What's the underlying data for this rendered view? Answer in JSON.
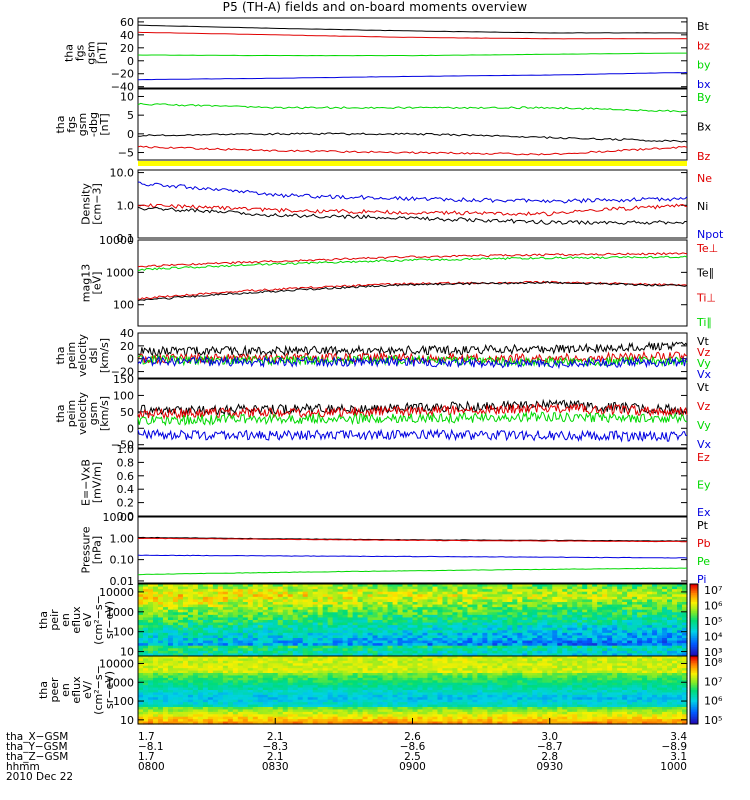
{
  "title": "P5 (TH-A) fields and on-board moments overview",
  "colors": {
    "black": "#000000",
    "red": "#e00000",
    "green": "#00d800",
    "blue": "#0000e0",
    "yellow": "#ffff00"
  },
  "panels": [
    {
      "id": "fgs-gsm",
      "ylabel": [
        "tha",
        "fgs",
        "gsm",
        "[nT]"
      ],
      "scale": "linear",
      "ylim": [
        -42,
        66
      ],
      "ticks": [
        {
          "v": 60,
          "label": "60"
        },
        {
          "v": 40,
          "label": "40"
        },
        {
          "v": 20,
          "label": "20"
        },
        {
          "v": 0,
          "label": "0"
        },
        {
          "v": -20,
          "label": "−20"
        },
        {
          "v": -40,
          "label": "−40"
        }
      ],
      "legend": [
        {
          "name": "Bt",
          "color": "#000000"
        },
        {
          "name": "bz",
          "color": "#e00000"
        },
        {
          "name": "by",
          "color": "#00d800"
        },
        {
          "name": "bx",
          "color": "#0000e0"
        }
      ]
    },
    {
      "id": "fgs-gsm-dbg",
      "ylabel": [
        "tha",
        "fgs",
        "gsm",
        "-dbg",
        "[nT]"
      ],
      "scale": "linear",
      "ylim": [
        -7,
        12
      ],
      "ticks": [
        {
          "v": 10,
          "label": "10"
        },
        {
          "v": 5,
          "label": "5"
        },
        {
          "v": 0,
          "label": "0"
        },
        {
          "v": -5,
          "label": "−5"
        }
      ],
      "legend": [
        {
          "name": "By",
          "color": "#00d800"
        },
        {
          "name": "Bx",
          "color": "#000000"
        },
        {
          "name": "Bz",
          "color": "#e00000"
        }
      ]
    },
    {
      "id": "density",
      "ylabel": [
        "Density",
        "[cm−3]"
      ],
      "scale": "log",
      "ylim": [
        0.1,
        12
      ],
      "ticks": [
        {
          "v": 10,
          "label": "10.0"
        },
        {
          "v": 1,
          "label": "1.0"
        },
        {
          "v": 0.1,
          "label": "0.1"
        }
      ],
      "legend": [
        {
          "name": "Ne",
          "color": "#e00000"
        },
        {
          "name": "Ni",
          "color": "#000000"
        },
        {
          "name": "Npot",
          "color": "#0000e0"
        }
      ]
    },
    {
      "id": "temperature",
      "ylabel": [
        "mag13",
        "[eV]"
      ],
      "scale": "log",
      "ylim": [
        22,
        10000
      ],
      "ticks": [
        {
          "v": 10000,
          "label": "10000"
        },
        {
          "v": 1000,
          "label": "1000"
        },
        {
          "v": 100,
          "label": "100"
        }
      ],
      "legend": [
        {
          "name": "Te⊥",
          "color": "#e00000"
        },
        {
          "name": "Te∥",
          "color": "#000000"
        },
        {
          "name": "Ti⊥",
          "color": "#e00000"
        },
        {
          "name": "Ti∥",
          "color": "#00d800"
        }
      ]
    },
    {
      "id": "peim-velocity-dsl",
      "ylabel": [
        "tha",
        "peim",
        "velocity",
        "dsl",
        "[km/s]"
      ],
      "scale": "linear",
      "ylim": [
        -30,
        40
      ],
      "ticks": [
        {
          "v": 40,
          "label": "40"
        },
        {
          "v": 20,
          "label": "20"
        },
        {
          "v": 0,
          "label": "0"
        },
        {
          "v": -20,
          "label": "−20"
        }
      ],
      "legend": [
        {
          "name": "Vt",
          "color": "#000000"
        },
        {
          "name": "Vz",
          "color": "#e00000"
        },
        {
          "name": "Vy",
          "color": "#00d800"
        },
        {
          "name": "Vx",
          "color": "#0000e0"
        }
      ]
    },
    {
      "id": "peim-velocity-gsm",
      "ylabel": [
        "tha",
        "peim",
        "velocity",
        "gsm",
        "[km/s]"
      ],
      "scale": "linear",
      "ylim": [
        -60,
        150
      ],
      "ticks": [
        {
          "v": 150,
          "label": "150"
        },
        {
          "v": 100,
          "label": "100"
        },
        {
          "v": 50,
          "label": "50"
        },
        {
          "v": 0,
          "label": "0"
        },
        {
          "v": -50,
          "label": "−50"
        }
      ],
      "legend": [
        {
          "name": "Vt",
          "color": "#000000"
        },
        {
          "name": "Vz",
          "color": "#e00000"
        },
        {
          "name": "Vy",
          "color": "#00d800"
        },
        {
          "name": "Vx",
          "color": "#0000e0"
        }
      ]
    },
    {
      "id": "e-vxb",
      "ylabel": [
        "E=−VxB",
        "[mV/m]"
      ],
      "scale": "linear",
      "ylim": [
        0,
        1
      ],
      "ticks": [
        {
          "v": 1.0,
          "label": "1.0"
        },
        {
          "v": 0.8,
          "label": "0.8"
        },
        {
          "v": 0.6,
          "label": "0.6"
        },
        {
          "v": 0.4,
          "label": "0.4"
        },
        {
          "v": 0.2,
          "label": "0.2"
        },
        {
          "v": 0.0,
          "label": "0.0"
        }
      ],
      "legend": [
        {
          "name": "Ez",
          "color": "#e00000"
        },
        {
          "name": "Ey",
          "color": "#00d800"
        },
        {
          "name": "Ex",
          "color": "#0000e0"
        }
      ]
    },
    {
      "id": "pressure",
      "ylabel": [
        "Pressure",
        "[nPa]"
      ],
      "scale": "log",
      "ylim": [
        0.008,
        10
      ],
      "ticks": [
        {
          "v": 10,
          "label": "10.00"
        },
        {
          "v": 1,
          "label": "1.00"
        },
        {
          "v": 0.1,
          "label": "0.10"
        },
        {
          "v": 0.01,
          "label": "0.01"
        }
      ],
      "legend": [
        {
          "name": "Pt",
          "color": "#000000"
        },
        {
          "name": "Pb",
          "color": "#e00000"
        },
        {
          "name": "Pe",
          "color": "#00d800"
        },
        {
          "name": "Pi",
          "color": "#0000e0"
        }
      ]
    },
    {
      "id": "peir-en-eflux",
      "ylabel": [
        "tha",
        "peir",
        "en",
        "eflux",
        "eV",
        "(cm²−s−",
        "sr−eV)"
      ],
      "scale": "log",
      "ylim": [
        6,
        25000
      ],
      "ticks": [
        {
          "v": 10000,
          "label": "10000"
        },
        {
          "v": 1000,
          "label": "1000"
        },
        {
          "v": 100,
          "label": "100"
        },
        {
          "v": 10,
          "label": "10"
        }
      ],
      "colorbar": {
        "labels": [
          "10⁷",
          "10⁶",
          "10⁵",
          "10⁴",
          "10³"
        ]
      }
    },
    {
      "id": "peer-en-eflux",
      "ylabel": [
        "tha",
        "peer",
        "en",
        "eflux",
        "eV/",
        "(cm²−s−",
        "sr−eV)"
      ],
      "scale": "log",
      "ylim": [
        6,
        25000
      ],
      "ticks": [
        {
          "v": 10000,
          "label": "10000"
        },
        {
          "v": 1000,
          "label": "1000"
        },
        {
          "v": 100,
          "label": "100"
        },
        {
          "v": 10,
          "label": "10"
        }
      ],
      "colorbar": {
        "labels": [
          "10⁸",
          "10⁷",
          "10⁶",
          "10⁵"
        ]
      }
    }
  ],
  "xaxis": {
    "rows": [
      {
        "label": "tha_X−GSM",
        "values": [
          "1.7",
          "2.1",
          "2.6",
          "3.0",
          "3.4"
        ]
      },
      {
        "label": "tha_Y−GSM",
        "values": [
          "−8.1",
          "−8.3",
          "−8.6",
          "−8.7",
          "−8.9"
        ]
      },
      {
        "label": "tha_Z−GSM",
        "values": [
          "1.7",
          "2.1",
          "2.5",
          "2.8",
          "3.1"
        ]
      },
      {
        "label": "hhmm",
        "values": [
          "0800",
          "0830",
          "0900",
          "0930",
          "1000"
        ]
      }
    ],
    "date": "2010 Dec 22"
  },
  "chart_data": {
    "type": "line",
    "title": "P5 (TH-A) fields and on-board moments overview",
    "x": [
      "0800",
      "0830",
      "0900",
      "0930",
      "1000"
    ],
    "subplots": [
      {
        "name": "fgs-gsm",
        "series": [
          {
            "name": "Bt",
            "values": [
              55,
              50,
              46,
              43,
              43
            ]
          },
          {
            "name": "bz",
            "values": [
              44,
              40,
              36,
              34,
              34
            ]
          },
          {
            "name": "by",
            "values": [
              9,
              8,
              8,
              10,
              12
            ]
          },
          {
            "name": "bx",
            "values": [
              -29,
              -27,
              -24,
              -22,
              -18
            ]
          }
        ]
      },
      {
        "name": "fgs-gsm-dbg",
        "series": [
          {
            "name": "By",
            "values": [
              8,
              7,
              7,
              7,
              6
            ]
          },
          {
            "name": "Bx",
            "values": [
              -0.5,
              0,
              0,
              -1,
              -2
            ]
          },
          {
            "name": "Bz",
            "values": [
              -3.5,
              -4.5,
              -5,
              -5.5,
              -3.5
            ]
          }
        ]
      },
      {
        "name": "density",
        "series": [
          {
            "name": "Ne",
            "values": [
              1.0,
              0.7,
              0.6,
              0.55,
              1.0
            ]
          },
          {
            "name": "Ni",
            "values": [
              0.8,
              0.5,
              0.4,
              0.3,
              0.3
            ]
          },
          {
            "name": "Npot",
            "values": [
              4.5,
              2.0,
              1.6,
              1.3,
              1.6
            ]
          }
        ]
      },
      {
        "name": "temperature",
        "series": [
          {
            "name": "Te⊥",
            "values": [
              150,
              300,
              450,
              500,
              400
            ]
          },
          {
            "name": "Te∥",
            "values": [
              130,
              260,
              420,
              480,
              380
            ]
          },
          {
            "name": "Ti⊥",
            "values": [
              1500,
              2200,
              3000,
              3500,
              3800
            ]
          },
          {
            "name": "Ti∥",
            "values": [
              1200,
              1800,
              2400,
              2800,
              3000
            ]
          }
        ]
      },
      {
        "name": "peim-velocity-dsl",
        "series": [
          {
            "name": "Vt",
            "values": [
              12,
              12,
              13,
              15,
              20
            ]
          },
          {
            "name": "Vz",
            "values": [
              0,
              1,
              2,
              0,
              5
            ]
          },
          {
            "name": "Vy",
            "values": [
              -2,
              -3,
              -2,
              -5,
              -3
            ]
          },
          {
            "name": "Vx",
            "values": [
              -4,
              -5,
              -5,
              -8,
              -5
            ]
          }
        ]
      },
      {
        "name": "peim-velocity-gsm",
        "series": [
          {
            "name": "Vt",
            "values": [
              55,
              58,
              62,
              72,
              55
            ]
          },
          {
            "name": "Vz",
            "values": [
              45,
              48,
              52,
              62,
              50
            ]
          },
          {
            "name": "Vy",
            "values": [
              25,
              28,
              30,
              35,
              30
            ]
          },
          {
            "name": "Vx",
            "values": [
              -20,
              -22,
              -20,
              -22,
              -25
            ]
          }
        ]
      },
      {
        "name": "pressure",
        "series": [
          {
            "name": "Pt",
            "values": [
              1.1,
              0.95,
              0.85,
              0.8,
              0.75
            ]
          },
          {
            "name": "Pb",
            "values": [
              1.0,
              0.9,
              0.8,
              0.75,
              0.7
            ]
          },
          {
            "name": "Pe",
            "values": [
              0.02,
              0.025,
              0.03,
              0.035,
              0.04
            ]
          },
          {
            "name": "Pi",
            "values": [
              0.16,
              0.15,
              0.14,
              0.13,
              0.12
            ]
          }
        ]
      }
    ]
  }
}
